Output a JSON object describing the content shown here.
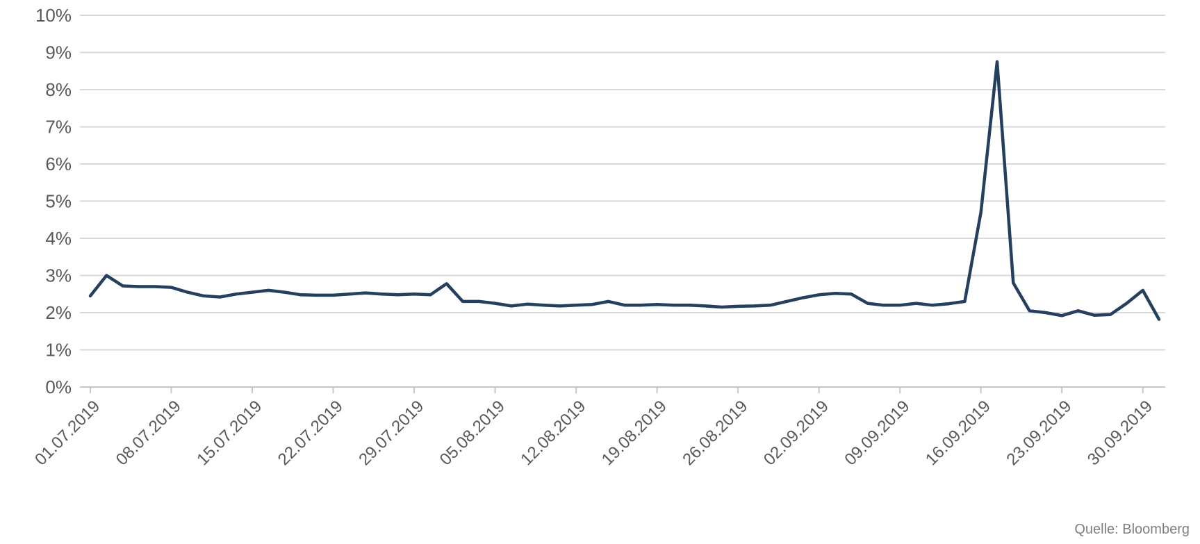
{
  "source": {
    "label": "Quelle: Bloomberg"
  },
  "colors": {
    "background": "#ffffff",
    "line": "#24405e",
    "gridline": "#d9d9d9",
    "axis": "#c6c6c6",
    "tick_text": "#595959",
    "source_text": "#7f7f7f"
  },
  "chart_data": {
    "type": "line",
    "title": "",
    "xlabel": "",
    "ylabel": "",
    "legend": "none",
    "grid": true,
    "x_label_rotation": -45,
    "ylim": [
      0,
      10
    ],
    "ytick_labels": [
      "0%",
      "1%",
      "2%",
      "3%",
      "4%",
      "5%",
      "6%",
      "7%",
      "8%",
      "9%",
      "10%"
    ],
    "xticks": [
      {
        "index": 0,
        "label": "01.07.2019"
      },
      {
        "index": 5,
        "label": "08.07.2019"
      },
      {
        "index": 10,
        "label": "15.07.2019"
      },
      {
        "index": 15,
        "label": "22.07.2019"
      },
      {
        "index": 20,
        "label": "29.07.2019"
      },
      {
        "index": 25,
        "label": "05.08.2019"
      },
      {
        "index": 30,
        "label": "12.08.2019"
      },
      {
        "index": 35,
        "label": "19.08.2019"
      },
      {
        "index": 40,
        "label": "26.08.2019"
      },
      {
        "index": 45,
        "label": "02.09.2019"
      },
      {
        "index": 50,
        "label": "09.09.2019"
      },
      {
        "index": 55,
        "label": "16.09.2019"
      },
      {
        "index": 60,
        "label": "23.09.2019"
      },
      {
        "index": 65,
        "label": "30.09.2019"
      }
    ],
    "x": [
      "01.07.2019",
      "02.07.2019",
      "03.07.2019",
      "04.07.2019",
      "05.07.2019",
      "08.07.2019",
      "09.07.2019",
      "10.07.2019",
      "11.07.2019",
      "12.07.2019",
      "15.07.2019",
      "16.07.2019",
      "17.07.2019",
      "18.07.2019",
      "19.07.2019",
      "22.07.2019",
      "23.07.2019",
      "24.07.2019",
      "25.07.2019",
      "26.07.2019",
      "29.07.2019",
      "30.07.2019",
      "31.07.2019",
      "01.08.2019",
      "02.08.2019",
      "05.08.2019",
      "06.08.2019",
      "07.08.2019",
      "08.08.2019",
      "09.08.2019",
      "12.08.2019",
      "13.08.2019",
      "14.08.2019",
      "15.08.2019",
      "16.08.2019",
      "19.08.2019",
      "20.08.2019",
      "21.08.2019",
      "22.08.2019",
      "23.08.2019",
      "26.08.2019",
      "27.08.2019",
      "28.08.2019",
      "29.08.2019",
      "30.08.2019",
      "02.09.2019",
      "03.09.2019",
      "04.09.2019",
      "05.09.2019",
      "06.09.2019",
      "09.09.2019",
      "10.09.2019",
      "11.09.2019",
      "12.09.2019",
      "13.09.2019",
      "16.09.2019",
      "17.09.2019",
      "18.09.2019",
      "19.09.2019",
      "20.09.2019",
      "23.09.2019",
      "24.09.2019",
      "25.09.2019",
      "26.09.2019",
      "27.09.2019",
      "30.09.2019",
      "01.10.2019"
    ],
    "values": [
      2.45,
      3.0,
      2.72,
      2.7,
      2.7,
      2.68,
      2.55,
      2.45,
      2.42,
      2.5,
      2.55,
      2.6,
      2.55,
      2.48,
      2.47,
      2.47,
      2.5,
      2.53,
      2.5,
      2.48,
      2.5,
      2.48,
      2.78,
      2.3,
      2.3,
      2.25,
      2.18,
      2.23,
      2.2,
      2.18,
      2.2,
      2.22,
      2.3,
      2.2,
      2.2,
      2.22,
      2.2,
      2.2,
      2.18,
      2.15,
      2.17,
      2.18,
      2.2,
      2.3,
      2.4,
      2.48,
      2.52,
      2.5,
      2.25,
      2.2,
      2.2,
      2.25,
      2.2,
      2.24,
      2.3,
      4.7,
      8.75,
      2.8,
      2.05,
      2.0,
      1.92,
      2.05,
      1.93,
      1.95,
      2.25,
      2.6,
      1.82
    ]
  }
}
